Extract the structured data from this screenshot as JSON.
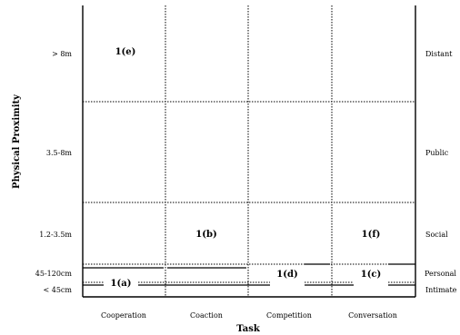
{
  "diagram": {
    "x_axis_title": "Task",
    "y_axis_title": "Physical Proximity",
    "columns": [
      {
        "label": "Cooperation"
      },
      {
        "label": "Coaction"
      },
      {
        "label": "Competition"
      },
      {
        "label": "Conversation"
      }
    ],
    "rows_left": [
      {
        "label": "> 8m"
      },
      {
        "label": "3.5-8m"
      },
      {
        "label": "1.2-3.5m"
      },
      {
        "label": "45-120cm"
      },
      {
        "label": "< 45cm"
      }
    ],
    "rows_right": [
      {
        "label": "Distant"
      },
      {
        "label": "Public"
      },
      {
        "label": "Social"
      },
      {
        "label": "Personal"
      },
      {
        "label": "Intimate"
      }
    ],
    "cells": [
      {
        "label": "1(e)"
      },
      {
        "label": "1(b)"
      },
      {
        "label": "1(f)"
      },
      {
        "label": "1(d)"
      },
      {
        "label": "1(c)"
      },
      {
        "label": "1(a)"
      }
    ]
  }
}
